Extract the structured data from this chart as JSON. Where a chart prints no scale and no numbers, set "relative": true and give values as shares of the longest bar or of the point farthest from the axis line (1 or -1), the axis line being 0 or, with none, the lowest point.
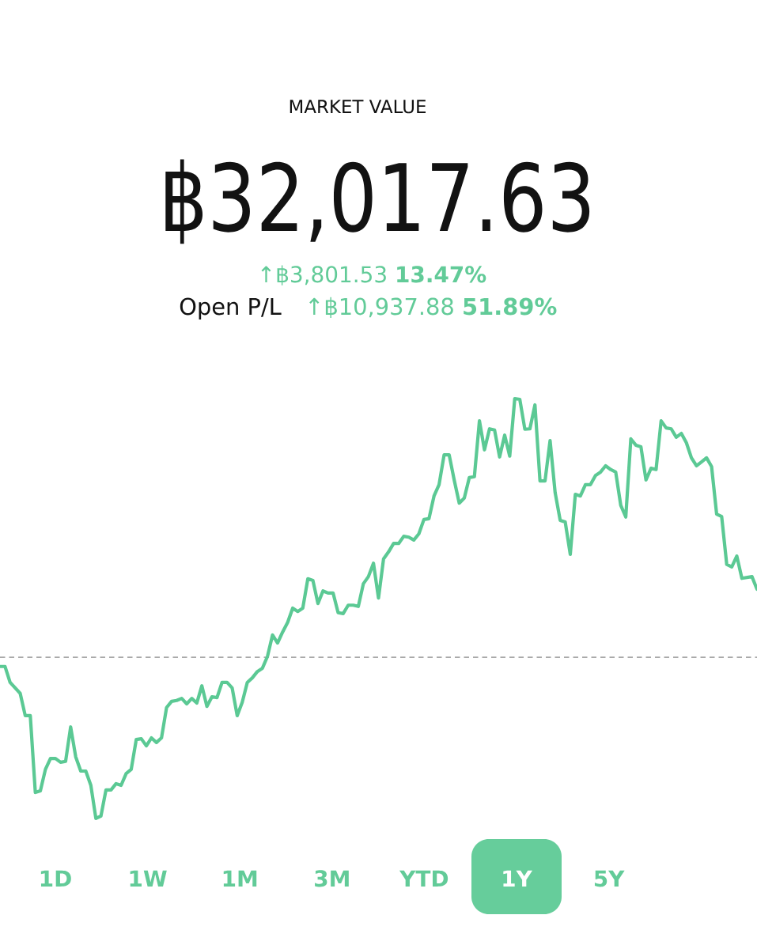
{
  "chart_data": {
    "type": "line",
    "relative": true,
    "title": "MARKET VALUE",
    "subtitle": "฿32,017.63",
    "annotations": [
      "↑฿3,801.53 **13.47%**",
      "Open P/L",
      "↑฿10,937.88 **51.89%**",
      "1D",
      "1W",
      "1M",
      "3M",
      "YTD",
      "1Y",
      "5Y"
    ],
    "categories": [
      null,
      null,
      null,
      null,
      null,
      null,
      null,
      null,
      null,
      null,
      null,
      null,
      null,
      null,
      null,
      null,
      null,
      null,
      null,
      null,
      null,
      null,
      null,
      null,
      null,
      null,
      null,
      null,
      null,
      null,
      null,
      null,
      null,
      null,
      null,
      null,
      null,
      null,
      null,
      null,
      null,
      null,
      null,
      null,
      null,
      null,
      null,
      null,
      null,
      null,
      null,
      null,
      null,
      null,
      null,
      null,
      null,
      null,
      null,
      null,
      null,
      null,
      null,
      null,
      null,
      null,
      null,
      null,
      null,
      null,
      null,
      null,
      null,
      null,
      null,
      null,
      null,
      null,
      null,
      null,
      null,
      null,
      null,
      null,
      null,
      null,
      null,
      null,
      null,
      null,
      null,
      null,
      null,
      null,
      null,
      null,
      null,
      null,
      null,
      null,
      null,
      null,
      null,
      null,
      null,
      null,
      null,
      null,
      null,
      null,
      null,
      null,
      null,
      null,
      null,
      null,
      null,
      null,
      null,
      null,
      null,
      null,
      null,
      null,
      null,
      null,
      null,
      null,
      null,
      null,
      null,
      null,
      null,
      null,
      null,
      null,
      null,
      null,
      null,
      null,
      null,
      null,
      null,
      null,
      null,
      null,
      null,
      null,
      null,
      null,
      null
    ],
    "values": [
      0.362,
      0.362,
      0.324,
      0.311,
      0.298,
      0.245,
      0.245,
      0.062,
      0.066,
      0.117,
      0.143,
      0.143,
      0.134,
      0.136,
      0.218,
      0.147,
      0.113,
      0.113,
      0.079,
      0,
      0.006,
      0.068,
      0.068,
      0.083,
      0.079,
      0.107,
      0.117,
      0.188,
      0.19,
      0.173,
      0.192,
      0.181,
      0.192,
      0.264,
      0.279,
      0.281,
      0.286,
      0.273,
      0.286,
      0.275,
      0.316,
      0.267,
      0.29,
      0.288,
      0.324,
      0.324,
      0.311,
      0.245,
      0.277,
      0.324,
      0.335,
      0.35,
      0.358,
      0.386,
      0.437,
      0.418,
      0.444,
      0.467,
      0.501,
      0.493,
      0.501,
      0.571,
      0.567,
      0.512,
      0.542,
      0.537,
      0.537,
      0.49,
      0.488,
      0.508,
      0.508,
      0.505,
      0.559,
      0.576,
      0.608,
      0.525,
      0.618,
      0.635,
      0.655,
      0.655,
      0.672,
      0.67,
      0.663,
      0.678,
      0.712,
      0.714,
      0.768,
      0.795,
      0.866,
      0.866,
      0.806,
      0.751,
      0.763,
      0.812,
      0.814,
      0.947,
      0.878,
      0.928,
      0.925,
      0.861,
      0.913,
      0.863,
      1,
      0.998,
      0.927,
      0.928,
      0.985,
      0.804,
      0.804,
      0.9,
      0.776,
      0.71,
      0.706,
      0.629,
      0.772,
      0.768,
      0.795,
      0.795,
      0.817,
      0.825,
      0.84,
      0.831,
      0.825,
      0.746,
      0.718,
      0.904,
      0.889,
      0.885,
      0.806,
      0.834,
      0.831,
      0.947,
      0.93,
      0.928,
      0.908,
      0.917,
      0.895,
      0.859,
      0.84,
      0.849,
      0.859,
      0.838,
      0.725,
      0.719,
      0.605,
      0.599,
      0.625,
      0.572,
      0.574,
      0.576,
      0.546
    ],
    "color": "#5bc994",
    "ref_lines": [
      {
        "axis": "y",
        "value": 0.384,
        "color": "#a8a8a8",
        "line_style": "dashed"
      }
    ]
  }
}
